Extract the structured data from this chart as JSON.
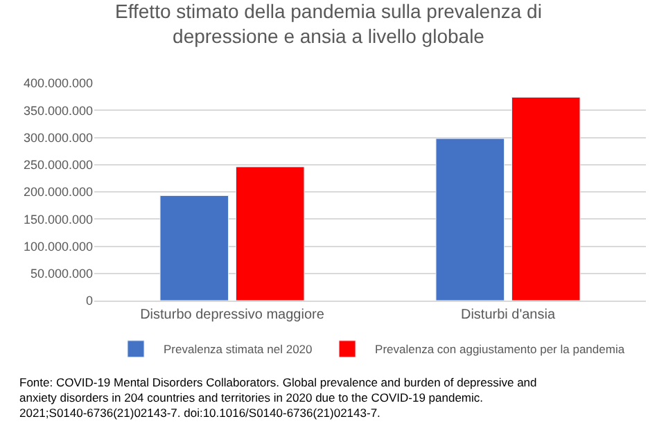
{
  "chart_data": {
    "type": "bar",
    "title": "Effetto stimato della pandemia sulla prevalenza di depressione e ansia a livello globale",
    "categories": [
      "Disturbo depressivo maggiore",
      "Disturbi d'ansia"
    ],
    "series": [
      {
        "name": "Prevalenza stimata nel 2020",
        "color": "#4472c4",
        "values": [
          193000000,
          298000000
        ]
      },
      {
        "name": "Prevalenza con aggiustamento per la pandemia",
        "color": "#ff0000",
        "values": [
          246000000,
          374000000
        ]
      }
    ],
    "ylim": [
      0,
      400000000
    ],
    "yticks": [
      {
        "value": 0,
        "label": "0"
      },
      {
        "value": 50000000,
        "label": "50.000.000"
      },
      {
        "value": 100000000,
        "label": "100.000.000"
      },
      {
        "value": 150000000,
        "label": "150.000.000"
      },
      {
        "value": 200000000,
        "label": "200.000.000"
      },
      {
        "value": 250000000,
        "label": "250.000.000"
      },
      {
        "value": 300000000,
        "label": "300.000.000"
      },
      {
        "value": 350000000,
        "label": "350.000.000"
      },
      {
        "value": 400000000,
        "label": "400.000.000"
      }
    ],
    "grid": "y",
    "legend": "bottom",
    "annotations": [
      "Fonte: COVID-19 Mental Disorders Collaborators. Global prevalence and burden of depressive and anxiety disorders in 204 countries and territories in 2020 due to the COVID-19 pandemic. 2021;S0140-6736(21)02143-7. doi:10.1016/S0140-6736(21)02143-7."
    ]
  }
}
